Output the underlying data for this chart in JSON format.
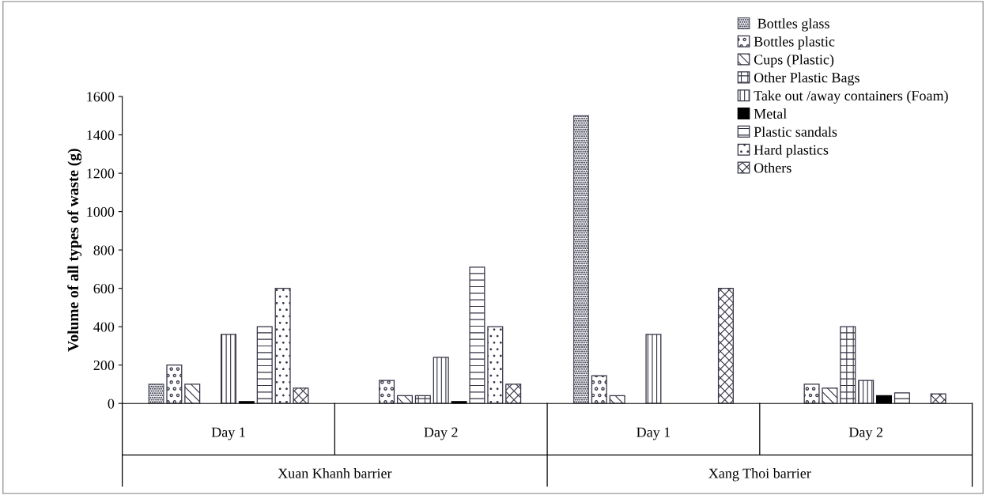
{
  "chart_data": {
    "type": "bar",
    "ylabel": "Volume of all types of waste (g)",
    "categories": [
      "Day 1",
      "Day 2",
      "Day 1",
      "Day 2"
    ],
    "annotations": [
      "Xuan Khanh barrier",
      "Xang Thoi barrier"
    ],
    "series": [
      {
        "name": " Bottles glass",
        "color": "#555566",
        "values": [
          100,
          null,
          1500,
          null
        ]
      },
      {
        "name": "Bottles plastic",
        "color": "#333344",
        "values": [
          200,
          120,
          145,
          100
        ]
      },
      {
        "name": "Cups (Plastic)",
        "color": "#333344",
        "values": [
          100,
          40,
          40,
          80
        ]
      },
      {
        "name": "Other Plastic Bags",
        "color": "#333344",
        "values": [
          null,
          40,
          null,
          400
        ]
      },
      {
        "name": "Take out /away containers (Foam)",
        "color": "#333344",
        "values": [
          360,
          240,
          360,
          120
        ]
      },
      {
        "name": "Metal",
        "color": "#000000",
        "values": [
          10,
          10,
          null,
          40
        ]
      },
      {
        "name": "Plastic sandals",
        "color": "#333344",
        "values": [
          400,
          710,
          null,
          55
        ]
      },
      {
        "name": "Hard plastics",
        "color": "#333344",
        "values": [
          600,
          400,
          null,
          null
        ]
      },
      {
        "name": "Others",
        "color": "#333344",
        "values": [
          80,
          100,
          600,
          50
        ]
      }
    ],
    "ylim": [
      0,
      1600
    ],
    "yticks": [
      0,
      200,
      400,
      600,
      800,
      1000,
      1200,
      1400,
      1600
    ],
    "grid": false,
    "legend": "top right"
  }
}
